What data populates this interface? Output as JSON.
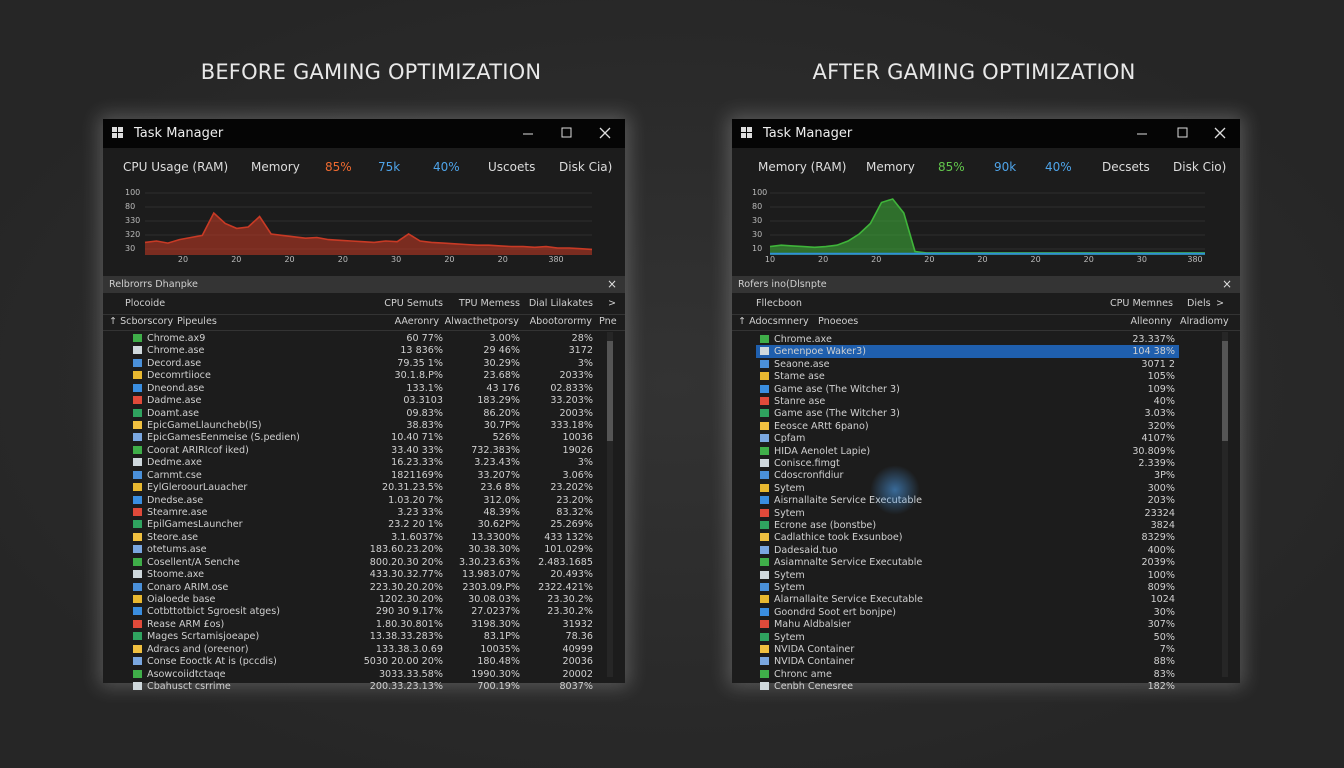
{
  "left_title": "BEFORE GAMING OPTIMIZATION",
  "right_title": "AFTER GAMING OPTIMIZATION",
  "windows": [
    {
      "title": "Task Manager",
      "header": [
        "CPU Usage (RAM)",
        "Memory",
        "85%",
        "75k",
        "40%",
        "Uscoets",
        "Disk Cia)"
      ],
      "y_axis_labels": [
        "100",
        "80",
        "330",
        "320",
        "30"
      ],
      "x_axis_labels": [
        "20",
        "20",
        "20",
        "20",
        "30",
        "20",
        "20",
        "380"
      ],
      "graph": [
        {
          "color": "#c83a25",
          "values": [
            18,
            20,
            17,
            22,
            25,
            28,
            60,
            45,
            38,
            40,
            55,
            30,
            28,
            26,
            24,
            25,
            22,
            21,
            20,
            19,
            18,
            20,
            19,
            30,
            20,
            18,
            17,
            16,
            15,
            14,
            14,
            13,
            12,
            12,
            11,
            12,
            10,
            10,
            9,
            8
          ]
        }
      ],
      "section_title": "Relbrorrs Dhanpke",
      "column_header": [
        "Plocoide",
        "CPU Semuts",
        "TPU Memess",
        "Dial Lilakates",
        ">"
      ],
      "sort_header": [
        "↑ Scborscory",
        "Pipeules",
        "AAeronry",
        "Alwacthetporsy",
        "Abootorormy",
        "Pne"
      ],
      "rows": [
        [
          "Chrome.ax9",
          "60 77%",
          "3.00%",
          "28%"
        ],
        [
          "Chrome.ase",
          "13 836%",
          "29 46%",
          "3172"
        ],
        [
          "Decord.ase",
          "79.35 1%",
          "30.29%",
          "3%"
        ],
        [
          "Decomrtiioce",
          "30.1.8.P%",
          "23.68%",
          "2033%"
        ],
        [
          "Dneond.ase",
          "133.1%",
          "43 176",
          "02.833%"
        ],
        [
          "Dadme.ase",
          "03.3103",
          "183.29%",
          "33.203%"
        ],
        [
          "Doamt.ase",
          "09.83%",
          "86.20%",
          "2003%"
        ],
        [
          "EpicGameLlauncheb(IS)",
          "38.83%",
          "30.7P%",
          "333.18%"
        ],
        [
          "EpicGamesEenmeise (S.pedien)",
          "10.40 71%",
          "526%",
          "10036"
        ],
        [
          "Coorat ARIRIcof iked)",
          "33.40 33%",
          "732.383%",
          "19026"
        ],
        [
          "Dedme.axe",
          "16.23.33%",
          "3.23.43%",
          "3%"
        ],
        [
          "Carnmt.cse",
          "1821169%",
          "33.207%",
          "3.06%"
        ],
        [
          "EylGleroourLauacher",
          "20.31.23.5%",
          "23.6 8%",
          "23.202%"
        ],
        [
          "Dnedse.ase",
          "1.03.20 7%",
          "312.0%",
          "23.20%"
        ],
        [
          "Steamre.ase",
          "3.23 33%",
          "48.39%",
          "83.32%"
        ],
        [
          "EpilGamesLauncher",
          "23.2 20 1%",
          "30.62P%",
          "25.269%"
        ],
        [
          "Steore.ase",
          "3.1.6037%",
          "13.3300%",
          "433 132%"
        ],
        [
          "otetums.ase",
          "183.60.23.20%",
          "30.38.30%",
          "101.029%"
        ],
        [
          "Cosellent/A Senche",
          "800.20.30 20%",
          "3.30.23.63%",
          "2.483.1685"
        ],
        [
          "Stoome.axe",
          "433.30.32.77%",
          "13.983.07%",
          "20.493%"
        ],
        [
          "Conaro ARIM.ose",
          "223.30.20.20%",
          "2303.09.P%",
          "2322.421%"
        ],
        [
          "Oialoede base",
          "1202.30.20%",
          "30.08.03%",
          "23.30.2%"
        ],
        [
          "Cotbttotbict Sgroesit atges)",
          "290 30 9.17%",
          "27.0237%",
          "23.30.2%"
        ],
        [
          "Rease ARM £os)",
          "1.80.30.801%",
          "3198.30%",
          "31932"
        ],
        [
          "Mages Scrtamisjoeape)",
          "13.38.33.283%",
          "83.1P%",
          "78.36"
        ],
        [
          "Adracs and (oreenor)",
          "133.38.3.0.69",
          "10035%",
          "40999"
        ],
        [
          "Conse Eooctk At is (pccdis)",
          "5030 20.00 20%",
          "180.48%",
          "20036"
        ],
        [
          "Asowcoiidtctaqe",
          "3033.33.58%",
          "1990.30%",
          "20002"
        ],
        [
          "Cbahusct csrrime",
          "200.33.23.13%",
          "700.19%",
          "8037%"
        ]
      ]
    },
    {
      "title": "Task Manager",
      "header": [
        "Memory (RAM)",
        "Memory",
        "85%",
        "90k",
        "40%",
        "Decsets",
        "Disk Cio)"
      ],
      "y_axis_labels": [
        "100",
        "80",
        "30",
        "30",
        "10"
      ],
      "x_axis_labels": [
        "10",
        "20",
        "20",
        "20",
        "20",
        "20",
        "20",
        "30",
        "380"
      ],
      "graph": [
        {
          "color": "#3fb43a",
          "values": [
            12,
            14,
            13,
            12,
            11,
            12,
            14,
            20,
            30,
            45,
            75,
            80,
            60,
            5,
            3,
            3,
            3,
            3,
            3,
            3,
            3,
            3,
            3,
            3,
            3,
            3,
            3,
            3,
            3,
            3,
            3,
            3,
            3,
            3,
            3,
            3,
            3,
            3,
            3,
            3
          ]
        },
        {
          "color": "#2f8fd8",
          "values": [
            2,
            2,
            2,
            2,
            2,
            2,
            2,
            2,
            2,
            2,
            2,
            2,
            2,
            2,
            2,
            2,
            2,
            2,
            2,
            2,
            2,
            2,
            2,
            2,
            2,
            2,
            2,
            2,
            2,
            2,
            2,
            2,
            2,
            2,
            2,
            2,
            2,
            2,
            2,
            2
          ]
        }
      ],
      "section_title": "Rofers ino(Dlsnpte",
      "column_header": [
        "Fllecboon",
        "CPU Memnes",
        "Diels",
        ">"
      ],
      "sort_header": [
        "↑ Adocsmnery",
        "Pnoeoes",
        "Alleonny",
        "Alradiomy"
      ],
      "rows": [
        [
          "Chrome.axe",
          "23.337%"
        ],
        [
          "Genenpoe Waker3)",
          "104 38%"
        ],
        [
          "Seaone.ase",
          "3071 2"
        ],
        [
          "Stame ase",
          "105%"
        ],
        [
          "Game ase (The Witcher 3)",
          "109%"
        ],
        [
          "Stanre ase",
          "40%"
        ],
        [
          "Game ase (The Witcher 3)",
          "3.03%"
        ],
        [
          "Eeosce ARtt 6pano)",
          "320%"
        ],
        [
          "Cpfam",
          "4107%"
        ],
        [
          "HIDA Aenolet Lapie)",
          "30.809%"
        ],
        [
          "Conisce.fimgt",
          "2.339%"
        ],
        [
          "Cdoscronfidiur",
          "3P%"
        ],
        [
          "Sytem",
          "300%"
        ],
        [
          "Aisrnallaite Service Executable",
          "203%"
        ],
        [
          "Sytem",
          "23324"
        ],
        [
          "Ecrone ase (bonstbe)",
          "3824"
        ],
        [
          "Cadlathice took Exsunboe)",
          "8329%"
        ],
        [
          "Dadesaid.tuo",
          "400%"
        ],
        [
          "Asiamnalte Service Executable",
          "2039%"
        ],
        [
          "Sytem",
          "100%"
        ],
        [
          "Sytem",
          "809%"
        ],
        [
          "Alarnallaite Service Executable",
          "1024"
        ],
        [
          "Goondrd Soot ert bonjpe)",
          "30%"
        ],
        [
          "Mahu Aldbalsier",
          "307%"
        ],
        [
          "Sytem",
          "50%"
        ],
        [
          "NVIDA Container",
          "7%"
        ],
        [
          "NVIDA Container",
          "88%"
        ],
        [
          "Chronc ame",
          "83%"
        ],
        [
          "Cenbh Cenesree",
          "182%"
        ]
      ]
    }
  ]
}
